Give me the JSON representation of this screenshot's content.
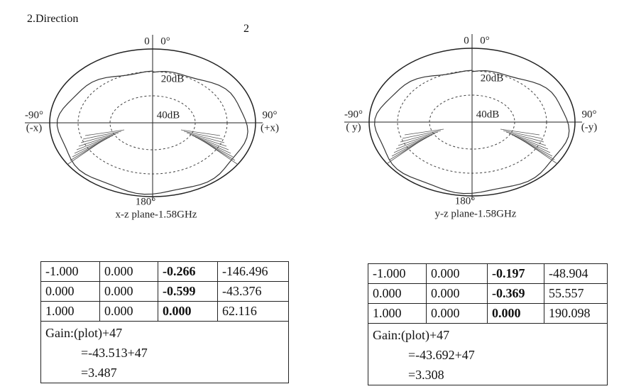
{
  "header": {
    "title": "2.Direction",
    "page_number": "2"
  },
  "plots": [
    {
      "labels": {
        "top": "0",
        "top_deg": "0°",
        "ring1": "20dB",
        "ring2": "40dB",
        "left": "-90°",
        "left_axis": "(-x)",
        "right": "90°",
        "right_axis": "(+x)",
        "bottom": "180°"
      },
      "caption": "x-z plane-1.58GHz"
    },
    {
      "labels": {
        "top": "0",
        "top_deg": "0°",
        "ring1": "20dB",
        "ring2": "40dB",
        "left": "-90°",
        "left_axis": "( y)",
        "right": "90°",
        "right_axis": "(-y)",
        "bottom": "180°"
      },
      "caption": "y-z plane-1.58GHz"
    }
  ],
  "tables": [
    {
      "rows": [
        [
          "-1.000",
          "0.000",
          "-0.266",
          "-146.496"
        ],
        [
          "0.000",
          "0.000",
          "-0.599",
          "-43.376"
        ],
        [
          "1.000",
          "0.000",
          "0.000",
          "62.116"
        ]
      ],
      "gain": [
        "Gain:(plot)+47",
        "=-43.513+47",
        "=3.487"
      ]
    },
    {
      "rows": [
        [
          "-1.000",
          "0.000",
          "-0.197",
          "-48.904"
        ],
        [
          "0.000",
          "0.000",
          "-0.369",
          "55.557"
        ],
        [
          "1.000",
          "0.000",
          "0.000",
          "190.098"
        ]
      ],
      "gain": [
        "Gain:(plot)+47",
        "=-43.692+47",
        "=3.308"
      ]
    }
  ]
}
